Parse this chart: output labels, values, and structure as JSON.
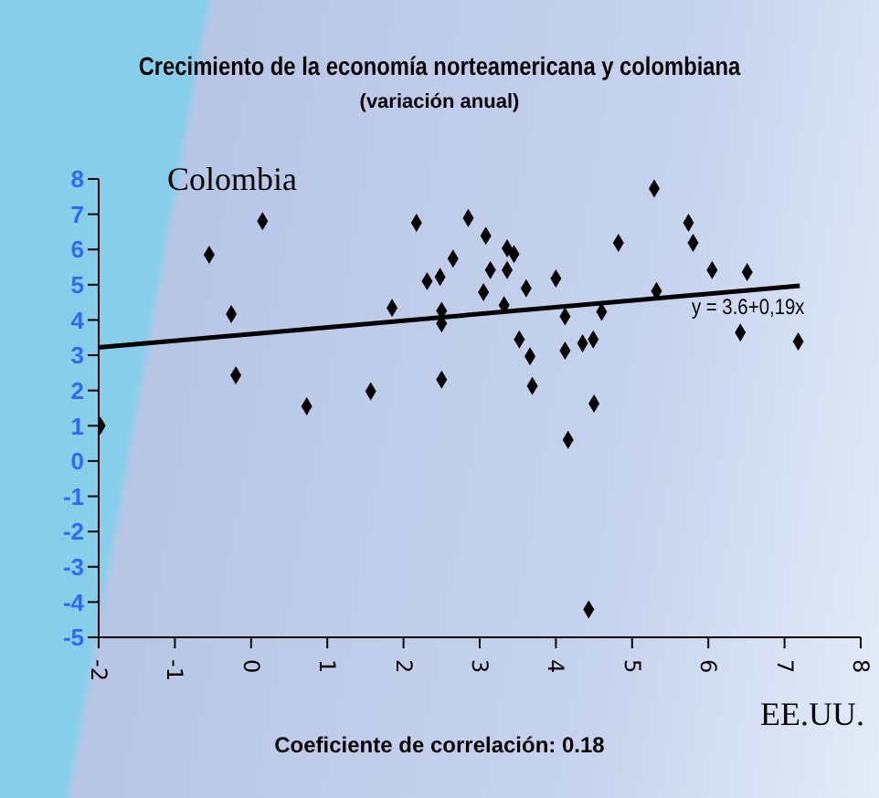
{
  "chart_data": {
    "type": "scatter",
    "title": "Crecimiento de la economía norteamericana y colombiana",
    "subtitle": "(variación anual)",
    "xlabel": "EE.UU.",
    "ylabel": "Colombia",
    "annotations": [
      "y = 3.6+0,19x",
      "Coeficiente de correlación: 0.18"
    ],
    "series": [
      {
        "color": "#000000",
        "x": [
          -1.98,
          -0.55,
          0.15,
          -0.26,
          -0.2,
          0.73,
          1.57,
          1.85,
          2.17,
          2.31,
          2.48,
          2.5,
          2.5,
          2.5,
          2.65,
          2.85,
          3.08,
          3.14,
          3.05,
          3.36,
          3.45,
          3.36,
          3.32,
          3.61,
          3.52,
          3.66,
          3.69,
          4.0,
          4.12,
          4.12,
          4.16,
          4.35,
          4.49,
          4.5,
          4.6,
          4.82,
          5.29,
          5.32,
          5.74,
          5.8,
          6.05,
          6.51,
          6.42,
          7.18,
          4.43
        ],
        "values": [
          1.0,
          5.85,
          6.8,
          4.17,
          2.43,
          1.55,
          1.98,
          4.34,
          6.76,
          5.1,
          5.22,
          4.26,
          3.9,
          2.31,
          5.74,
          6.89,
          6.39,
          5.42,
          4.79,
          6.03,
          5.87,
          5.42,
          4.42,
          4.9,
          3.45,
          2.97,
          2.13,
          5.18,
          4.1,
          3.13,
          0.6,
          3.34,
          3.45,
          1.63,
          4.23,
          6.19,
          7.73,
          4.82,
          6.76,
          6.19,
          5.42,
          5.36,
          3.64,
          3.39,
          -4.21
        ]
      },
      {
        "type": "line",
        "marker": "none",
        "color": "#000000",
        "x": [
          -2,
          7.2
        ],
        "values": [
          3.22,
          4.97
        ]
      }
    ],
    "marker": "diamond",
    "grid": false,
    "legend": false,
    "xlim": [
      -2,
      8
    ],
    "xticks": [
      -2,
      -1,
      0,
      1,
      2,
      3,
      4,
      5,
      6,
      7,
      8
    ],
    "ylim": [
      -5,
      8
    ],
    "yticks": [
      -5,
      -4,
      -3,
      -2,
      -1,
      0,
      1,
      2,
      3,
      4,
      5,
      6,
      7,
      8
    ]
  }
}
